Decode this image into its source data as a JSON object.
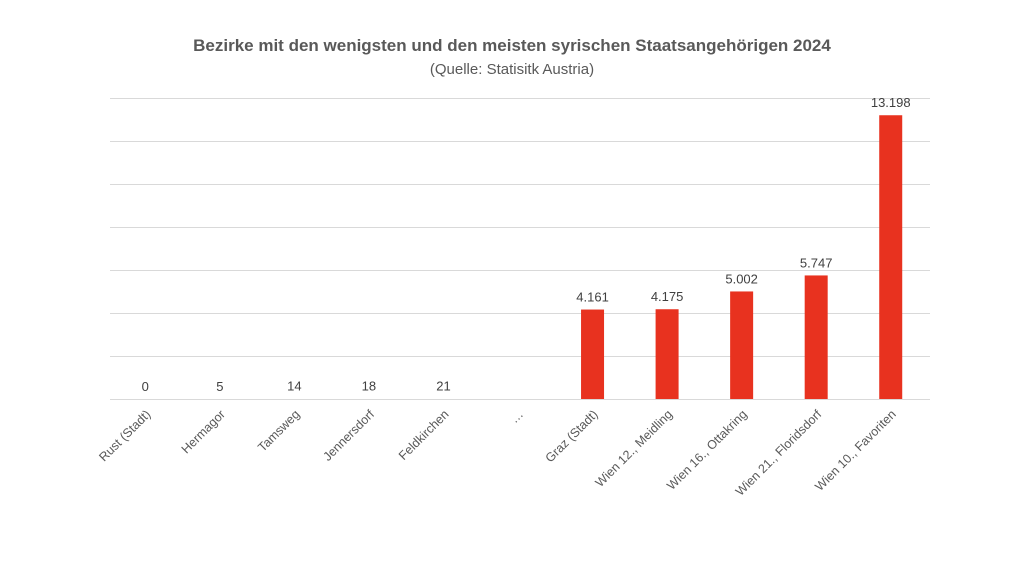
{
  "chart_data": {
    "type": "bar",
    "title": "Bezirke mit den wenigsten und den meisten syrischen Staatsangehörigen 2024",
    "subtitle": "(Quelle: Statisitk Austria)",
    "xlabel": "",
    "ylabel": "",
    "ylim": [
      0,
      14000
    ],
    "ytick_step": 2000,
    "grid": true,
    "legend": "none",
    "bar_color": "#e8321f",
    "categories": [
      "Rust (Stadt)",
      "Hermagor",
      "Tamsweg",
      "Jennersdorf",
      "Feldkirchen",
      "…",
      "Graz (Stadt)",
      "Wien 12., Meidling",
      "Wien 16., Ottakring",
      "Wien 21., Floridsdorf",
      "Wien 10., Favoriten"
    ],
    "values": [
      0,
      5,
      14,
      18,
      21,
      null,
      4161,
      4175,
      5002,
      5747,
      13198
    ],
    "data_labels": [
      "0",
      "5",
      "14",
      "18",
      "21",
      "",
      "4.161",
      "4.175",
      "5.002",
      "5.747",
      "13.198"
    ]
  }
}
